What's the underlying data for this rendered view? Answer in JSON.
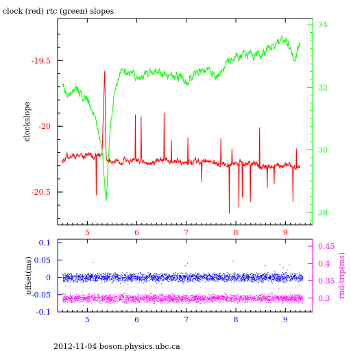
{
  "chart_data": [
    {
      "type": "line",
      "title": "clock (red) rtc (green) slopes",
      "xlim": [
        4.4,
        9.55
      ],
      "x_ticks": [
        5,
        6,
        7,
        8,
        9
      ],
      "ylabel_left": "clockslope",
      "ylim_left": [
        -20.75,
        -19.18
      ],
      "y_ticks_left": [
        -19.5,
        -20,
        -20.5
      ],
      "ylim_right": [
        27.6,
        34.2
      ],
      "y_ticks_right": [
        28,
        30,
        32,
        34
      ],
      "colors": {
        "clock": "#ff0000",
        "rtc": "#00ff00",
        "axis": "#000000"
      },
      "series": [
        {
          "color": "#ff0000",
          "axis": "left",
          "x": [
            4.5,
            4.8,
            5.1,
            5.2,
            5.3,
            5.35,
            5.38,
            5.45,
            5.6,
            5.9,
            6.2,
            6.6,
            7.0,
            7.4,
            7.8,
            8.2,
            8.6,
            9.0,
            9.3
          ],
          "y": [
            -20.25,
            -20.22,
            -20.23,
            -20.21,
            -20.22,
            -19.55,
            -20.25,
            -20.26,
            -20.27,
            -20.26,
            -20.27,
            -20.26,
            -20.28,
            -20.27,
            -20.29,
            -20.28,
            -20.31,
            -20.3,
            -20.32
          ]
        },
        {
          "color": "#00ff00",
          "axis": "right",
          "x": [
            4.5,
            4.6,
            4.8,
            5.0,
            5.1,
            5.2,
            5.3,
            5.38,
            5.45,
            5.55,
            5.65,
            5.8,
            6.0,
            6.3,
            6.6,
            7.0,
            7.3,
            7.6,
            7.9,
            8.2,
            8.5,
            8.8,
            9.0,
            9.2,
            9.3
          ],
          "y": [
            32.1,
            31.8,
            32.0,
            31.6,
            31.3,
            30.8,
            30.0,
            28.2,
            30.5,
            32.0,
            32.5,
            32.6,
            32.3,
            32.5,
            32.4,
            32.2,
            32.6,
            32.3,
            32.9,
            33.1,
            33.0,
            33.4,
            33.5,
            32.9,
            33.5
          ]
        }
      ]
    },
    {
      "type": "scatter",
      "xlim": [
        4.4,
        9.55
      ],
      "x_ticks": [
        5,
        6,
        7,
        8,
        9
      ],
      "ylabel_left": "offset(ms)",
      "ylabel_right": "rnd-trip(ms)",
      "ylim_left": [
        -0.1,
        0.11
      ],
      "y_ticks_left": [
        "0.1",
        "0.05",
        "0",
        "-0.05",
        "-0.1"
      ],
      "ylim_right": [
        0.26,
        0.47
      ],
      "y_ticks_right": [
        "0.45",
        "0.4",
        "0.35",
        "0.3"
      ],
      "colors": {
        "offset": "#0000ff",
        "rndtrip": "#ff00ff"
      },
      "series": [
        {
          "color": "#0000ff",
          "axis": "left",
          "x_range": [
            4.5,
            9.35
          ],
          "center": 0.0,
          "spread": 0.012
        },
        {
          "color": "#ff00ff",
          "axis": "right",
          "x_range": [
            4.5,
            9.35
          ],
          "center": 0.3,
          "spread": 0.012
        }
      ]
    }
  ],
  "footer": "2012-11-04 boson.physics.ubc.ca"
}
